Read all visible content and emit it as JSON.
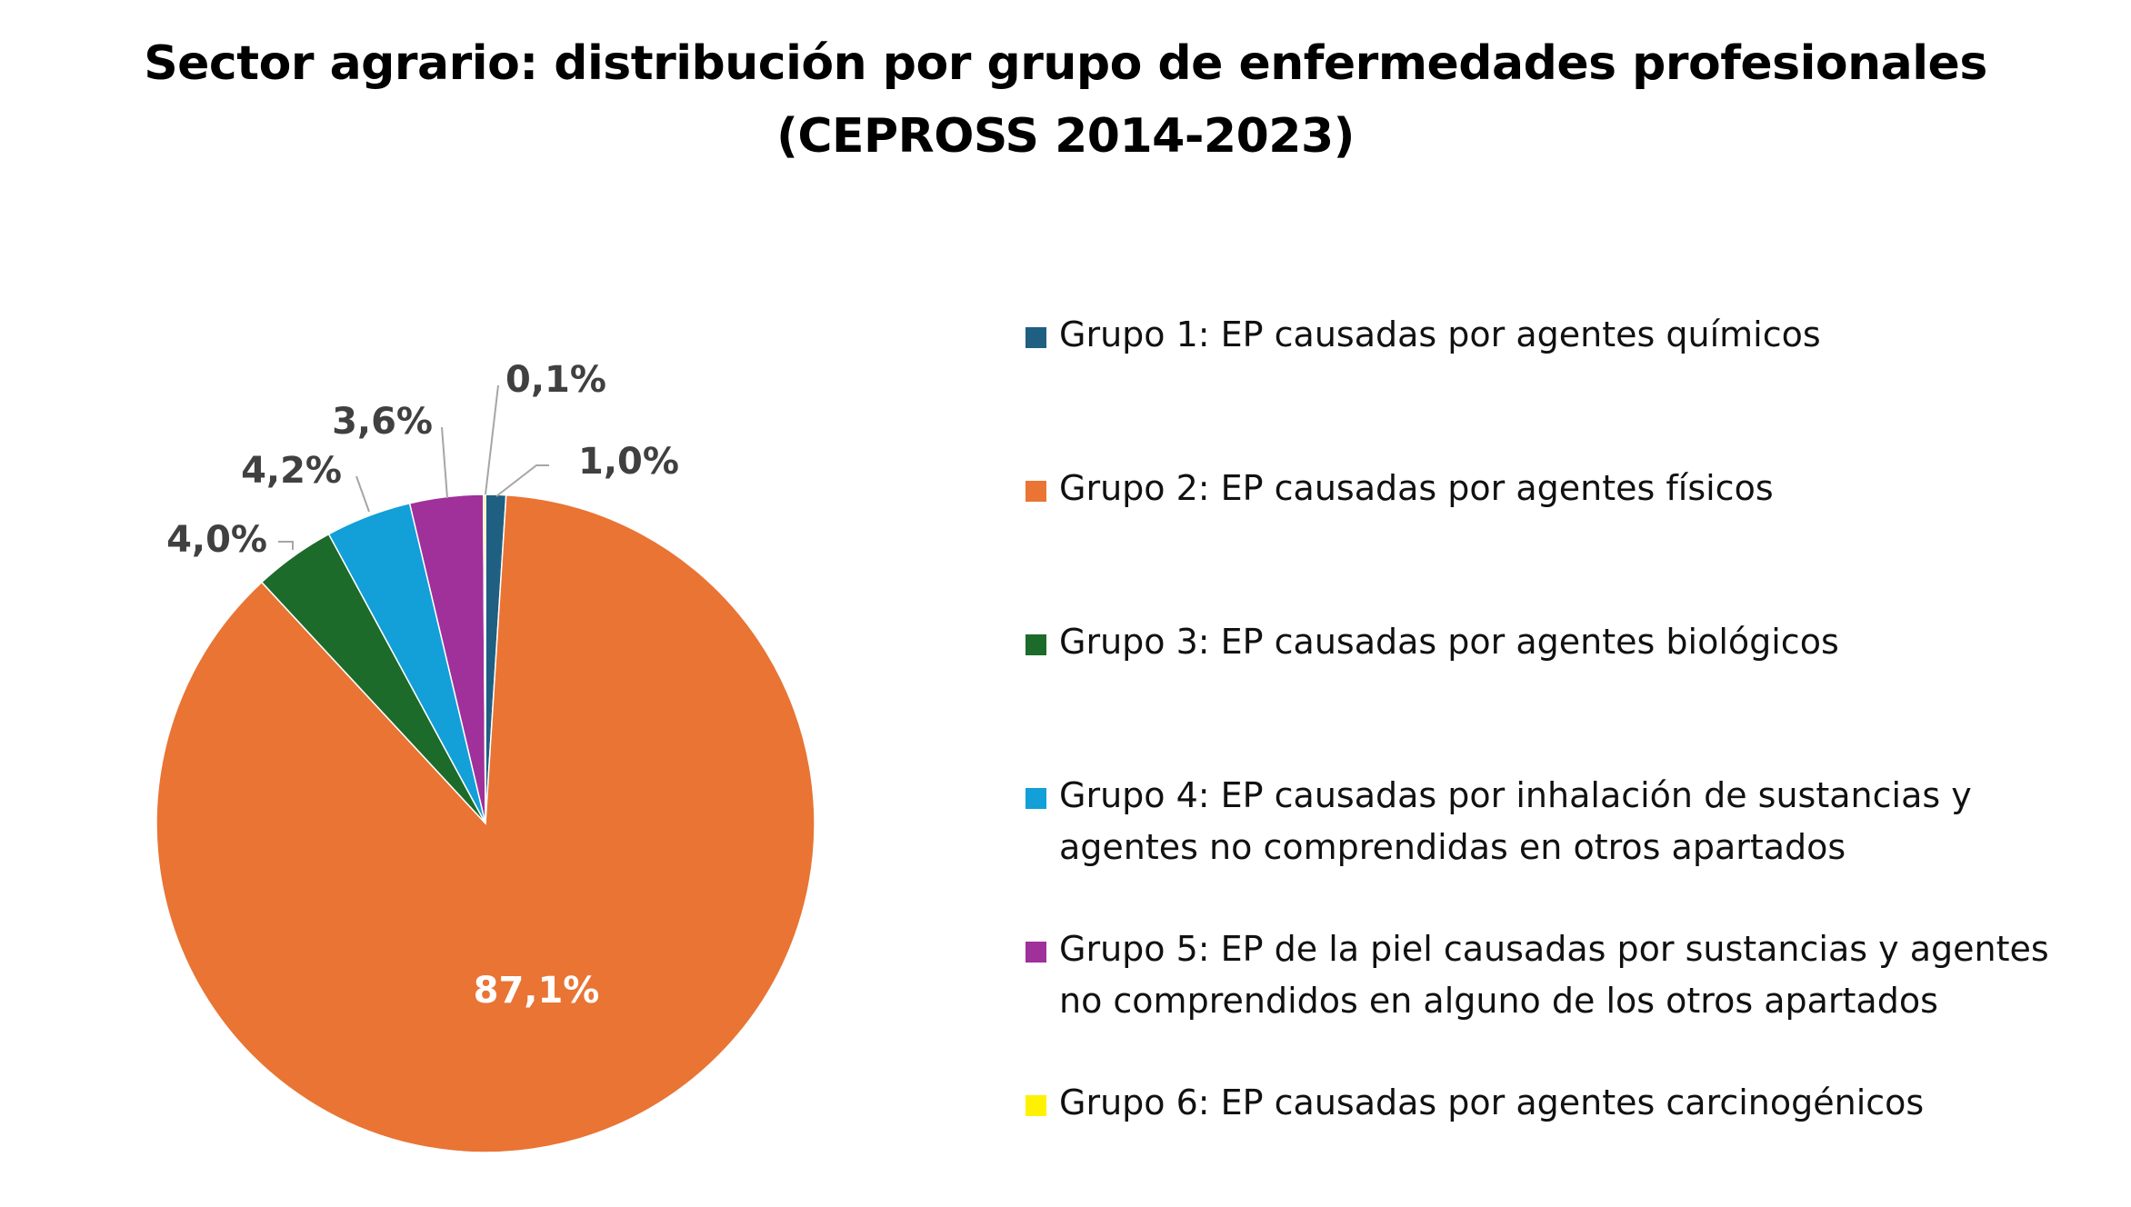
{
  "title": {
    "line1": "Sector agrario: distribución por grupo de enfermedades profesionales",
    "line2": "(CEPROSS 2014-2023)"
  },
  "chart_data": {
    "type": "pie",
    "title": "Sector agrario: distribución por grupo de enfermedades profesionales (CEPROSS 2014-2023)",
    "legend_position": "right",
    "slices": [
      {
        "label": "Grupo 1: EP causadas por agentes químicos",
        "value": 1.0,
        "data_label": "1,0%",
        "color": "#1f5f82"
      },
      {
        "label": "Grupo 2: EP causadas por agentes físicos",
        "value": 87.1,
        "data_label": "87,1%",
        "color": "#e97434"
      },
      {
        "label": "Grupo 3: EP causadas por agentes biológicos",
        "value": 4.0,
        "data_label": "4,0%",
        "color": "#1c6b2a"
      },
      {
        "label": "Grupo 4: EP causadas por inhalación de sustancias y agentes no comprendidas en otros apartados",
        "value": 4.2,
        "data_label": "4,2%",
        "color": "#139fd8"
      },
      {
        "label": "Grupo 5: EP de la piel causadas por sustancias y agentes no comprendidos en alguno de los otros apartados",
        "value": 3.6,
        "data_label": "3,6%",
        "color": "#a0309a"
      },
      {
        "label": "Grupo 6: EP causadas por agentes carcinogénicos",
        "value": 0.1,
        "data_label": "0,1%",
        "color": "#fff200"
      }
    ]
  }
}
